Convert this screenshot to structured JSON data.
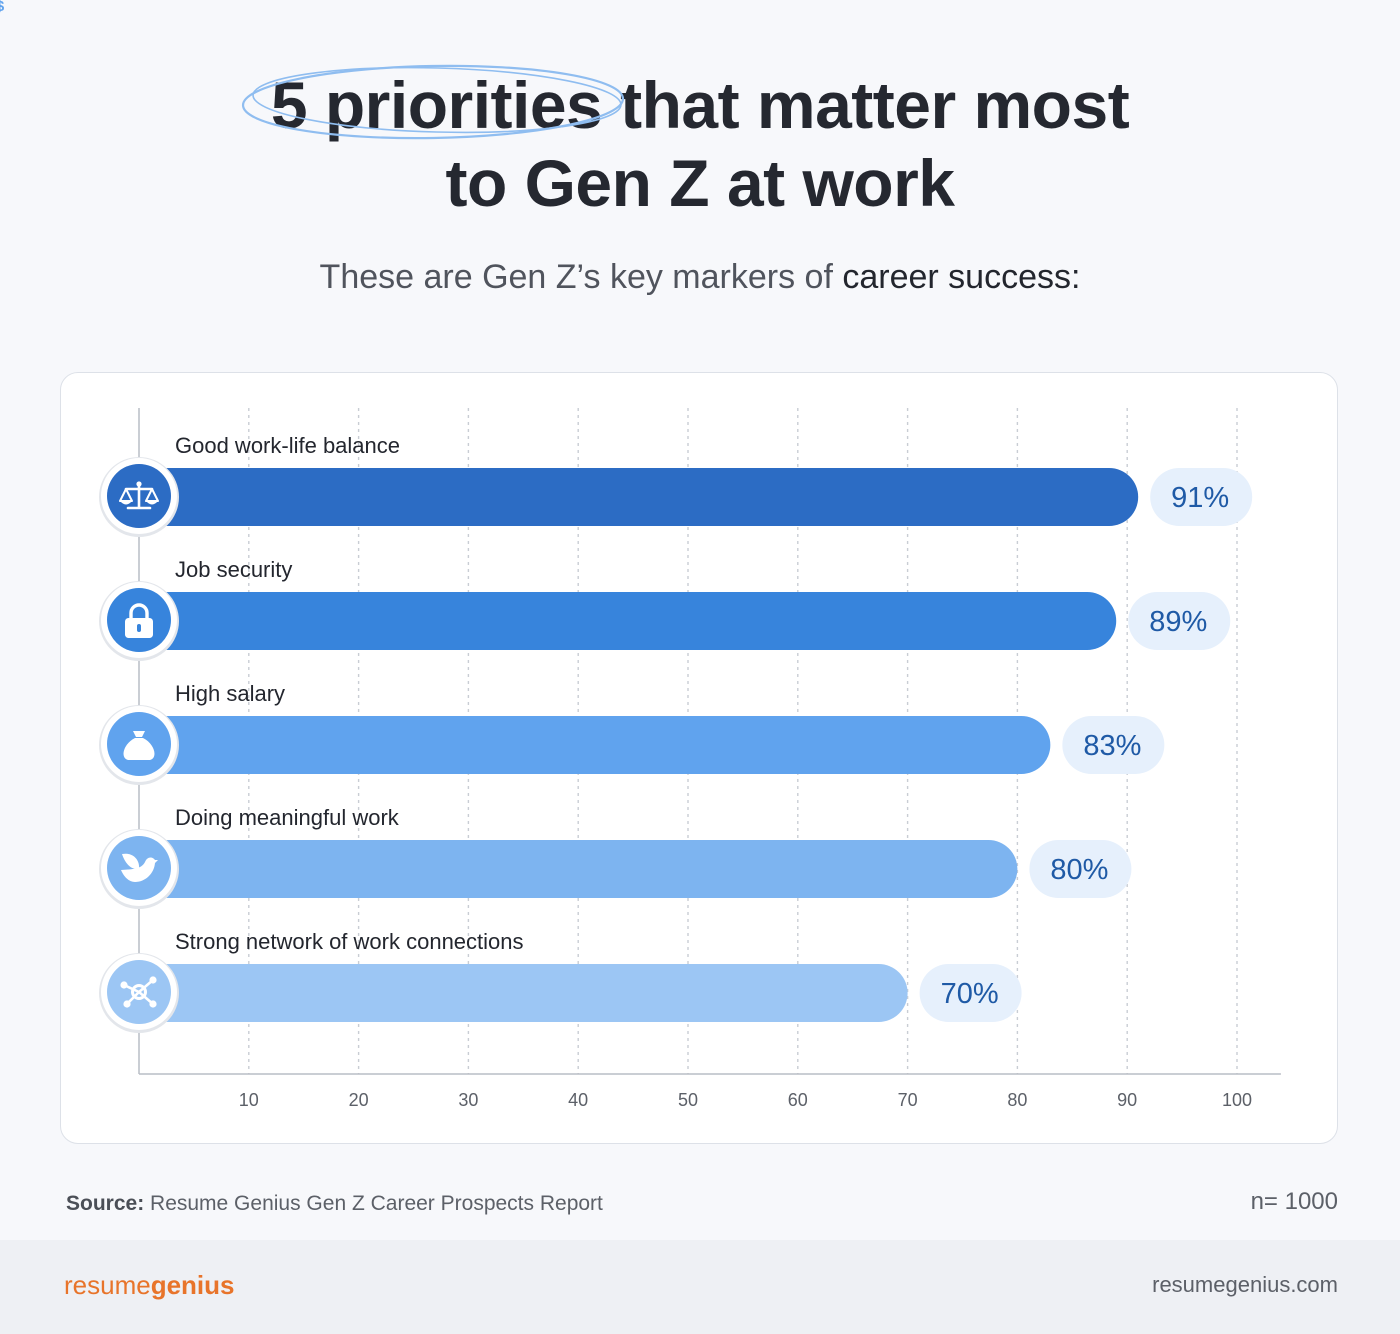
{
  "header": {
    "title_highlight": "5 priorities",
    "title_rest": " that matter most",
    "title_line2": "to Gen Z at work",
    "subtitle_lead": "These are Gen Z’s key markers of ",
    "subtitle_bold": "career success:"
  },
  "chart_data": {
    "type": "bar",
    "orientation": "horizontal",
    "categories": [
      "Good work-life balance",
      "Job security",
      "High salary",
      "Doing meaningful work",
      "Strong network of work connections"
    ],
    "values": [
      91,
      89,
      83,
      80,
      70
    ],
    "value_labels": [
      "91%",
      "89%",
      "83%",
      "80%",
      "70%"
    ],
    "icons": [
      "balance-scale-icon",
      "padlock-icon",
      "money-bag-icon",
      "dove-icon",
      "network-icon"
    ],
    "bar_colors": [
      "#2c6cc4",
      "#3784dc",
      "#60a3ee",
      "#7db4f0",
      "#9cc6f4"
    ],
    "x_ticks": [
      10,
      20,
      30,
      40,
      50,
      60,
      70,
      80,
      90,
      100
    ],
    "xlim": [
      0,
      104
    ],
    "grid": true,
    "label_color": "#1f5aa6",
    "badge_color": "#e6f0fc"
  },
  "footer": {
    "source_label": "Source:",
    "source_text": " Resume Genius Gen Z Career Prospects Report",
    "n_value": "n= 1000",
    "brand_light": "resume",
    "brand_bold": "genius",
    "website": "resumegenius.com"
  }
}
